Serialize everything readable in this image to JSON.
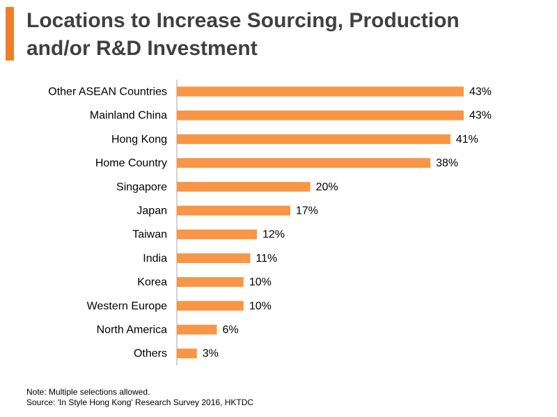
{
  "title": {
    "line1": "Locations to Increase Sourcing, Production",
    "line2": "and/or R&D Investment"
  },
  "colors": {
    "accent": "#f07d2a",
    "bar": "#f79646",
    "text": "#000000",
    "title": "#404040",
    "axis": "#a6a6a6"
  },
  "chart_data": {
    "type": "bar",
    "orientation": "horizontal",
    "categories": [
      "Other ASEAN Countries",
      "Mainland China",
      "Hong Kong",
      "Home Country",
      "Singapore",
      "Japan",
      "Taiwan",
      "India",
      "Korea",
      "Western Europe",
      "North America",
      "Others"
    ],
    "values": [
      43,
      43,
      41,
      38,
      20,
      17,
      12,
      11,
      10,
      10,
      6,
      3
    ],
    "value_labels": [
      "43%",
      "43%",
      "41%",
      "38%",
      "20%",
      "17%",
      "12%",
      "11%",
      "10%",
      "10%",
      "6%",
      "3%"
    ],
    "unit": "%",
    "xlim": [
      0,
      43
    ],
    "grid": false,
    "legend": "none"
  },
  "notes": {
    "note": "Note: Multiple selections allowed.",
    "source": "Source: 'In Style Hong Kong' Research Survey 2016, HKTDC"
  }
}
